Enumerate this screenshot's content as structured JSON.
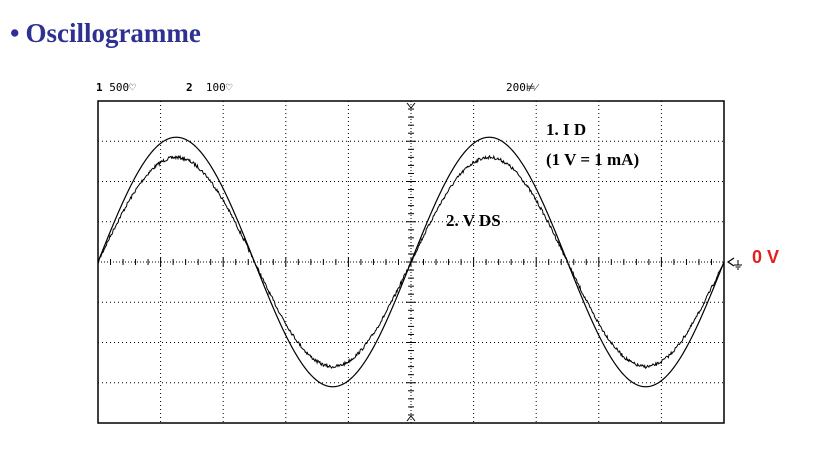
{
  "title": "Oscillogramme",
  "bullet": "•",
  "scope_header": {
    "ch1_num": "1",
    "ch1_scale": "500♡",
    "ch2_num": "2",
    "ch2_scale": "100♡",
    "timebase": "200⊭⁄"
  },
  "chart_data": {
    "type": "line",
    "title": "",
    "xlabel": "",
    "ylabel": "",
    "grid": true,
    "divisions": {
      "x": 10,
      "y": 8
    },
    "xlim": [
      0,
      10
    ],
    "ylim": [
      -4,
      4
    ],
    "series": [
      {
        "name": "1. I D",
        "unit_note": "(1 V = 1 mA)",
        "color": "#000000",
        "noise": false,
        "amplitude_div": 3.1,
        "period_div": 5.0,
        "phase_start_div": 0.0
      },
      {
        "name": "2. V DS",
        "color": "#000000",
        "noise": true,
        "amplitude_div": 2.6,
        "period_div": 5.0,
        "phase_start_div": 0.0
      }
    ],
    "annotations": [
      "1. I D",
      "(1 V = 1 mA)",
      "2. V DS"
    ],
    "reference_marker": "0 V",
    "reference_color": "#e41e1e"
  }
}
